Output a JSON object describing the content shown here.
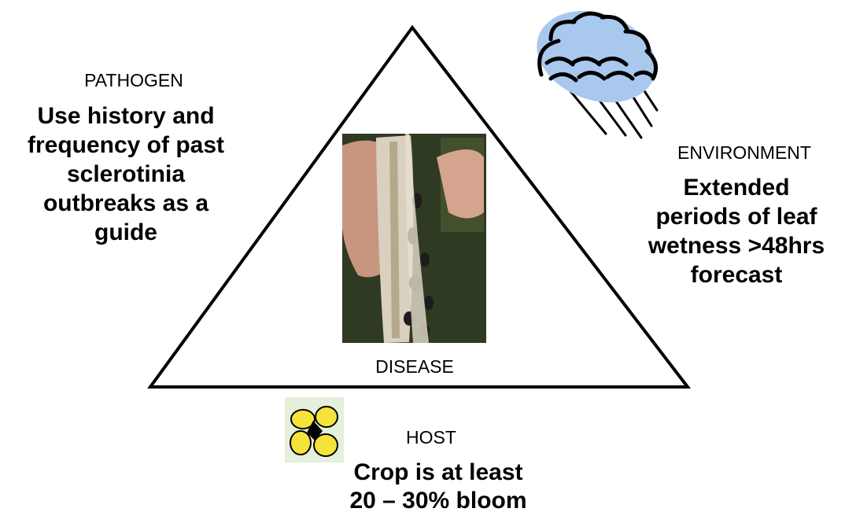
{
  "pathogen": {
    "label": "PATHOGEN",
    "lines": [
      "Use history and",
      "frequency of past",
      "sclerotinia",
      "outbreaks as a",
      "guide"
    ]
  },
  "environment": {
    "label": "ENVIRONMENT",
    "lines": [
      "Extended",
      "periods of leaf",
      "wetness >48hrs",
      "forecast"
    ]
  },
  "disease": {
    "label": "DISEASE"
  },
  "host": {
    "label": "HOST",
    "lines": [
      "Crop is at least",
      "20 – 30% bloom"
    ]
  }
}
